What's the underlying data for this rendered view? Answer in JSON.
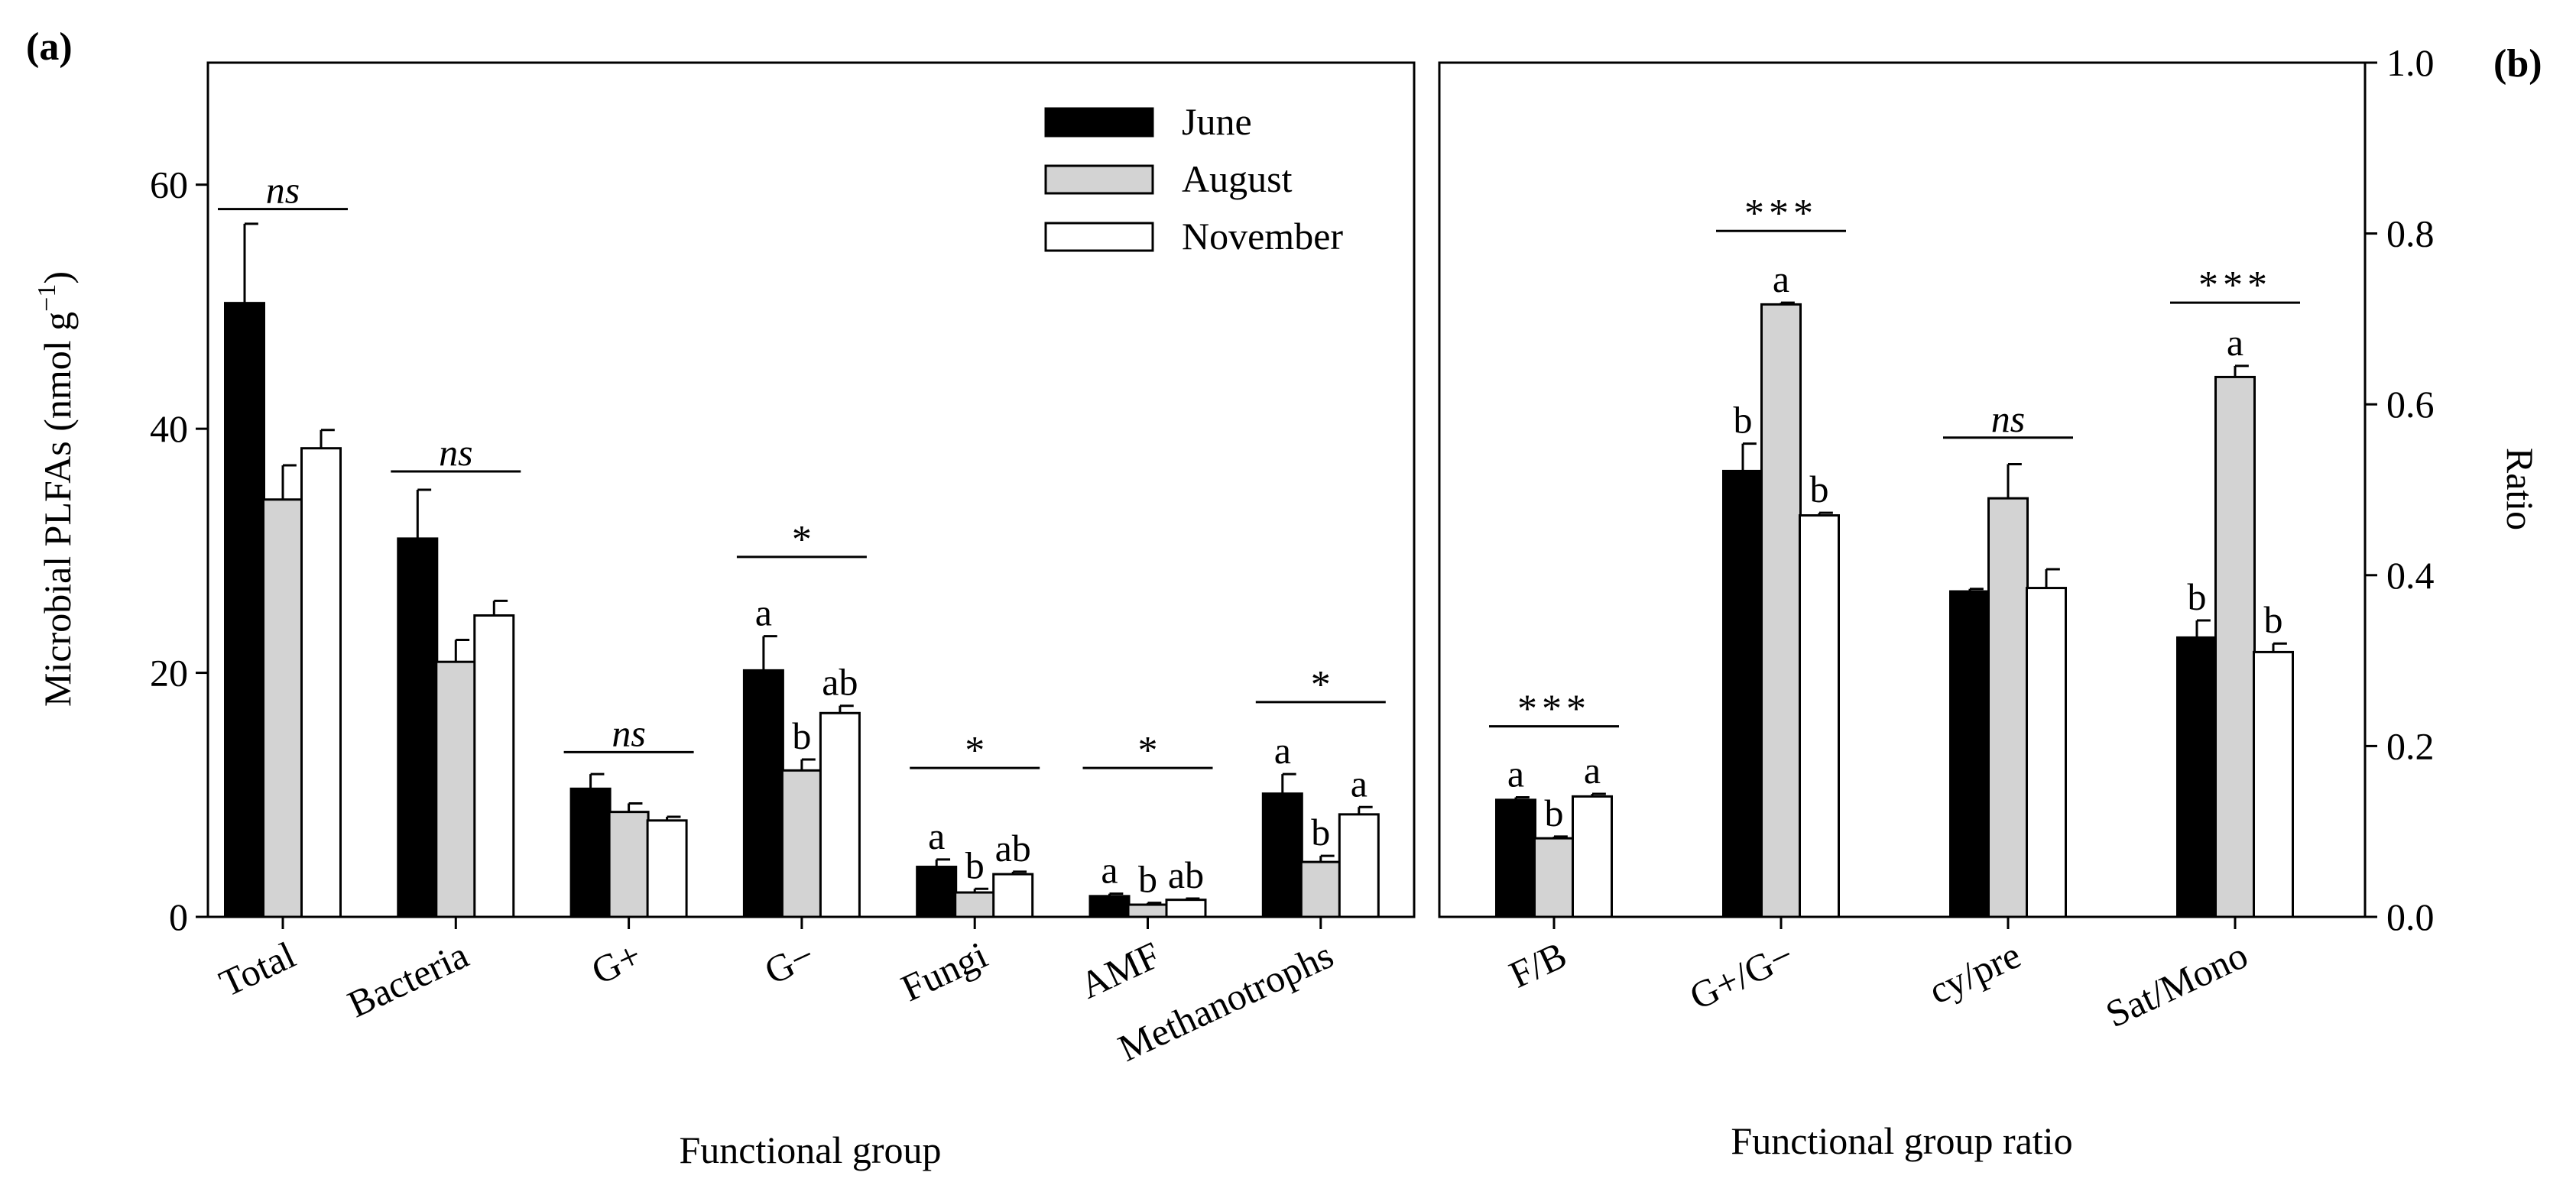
{
  "chart_data": [
    {
      "panel": "(a)",
      "type": "bar",
      "xlabel": "Functional group",
      "ylabel": "Microbial PLFAs (nmol g",
      "ylabel_sup": "−1",
      "ylabel_close": ")",
      "ylim": [
        0,
        70
      ],
      "yticks": [
        0,
        20,
        40,
        60
      ],
      "categories": [
        "Total",
        "Bacteria",
        "G+",
        "G−",
        "Fungi",
        "AMF",
        "Methanotrophs"
      ],
      "series": [
        {
          "name": "June",
          "color": "#000000",
          "values": [
            50.3,
            31.0,
            10.5,
            20.2,
            4.1,
            1.7,
            10.1
          ],
          "errors": [
            6.5,
            4.0,
            1.2,
            2.8,
            0.6,
            0.2,
            1.6
          ]
        },
        {
          "name": "August",
          "color": "#d3d3d3",
          "values": [
            34.2,
            20.9,
            8.6,
            12.0,
            2.0,
            1.0,
            4.5
          ],
          "errors": [
            2.8,
            1.8,
            0.7,
            0.9,
            0.3,
            0.15,
            0.5
          ]
        },
        {
          "name": "November",
          "color": "#ffffff",
          "values": [
            38.4,
            24.7,
            7.9,
            16.7,
            3.5,
            1.4,
            8.4
          ],
          "errors": [
            1.5,
            1.2,
            0.3,
            0.6,
            0.2,
            0.1,
            0.6
          ]
        }
      ],
      "significance": [
        "ns",
        "ns",
        "ns",
        "*",
        "*",
        "*",
        "*"
      ],
      "significance_italic": [
        true,
        true,
        true,
        false,
        false,
        false,
        false
      ],
      "sig_line_y": [
        58,
        36.5,
        13.5,
        29.5,
        12.2,
        12.2,
        17.6
      ],
      "letters": [
        [
          "",
          "",
          ""
        ],
        [
          "",
          "",
          ""
        ],
        [
          "",
          "",
          ""
        ],
        [
          "a",
          "b",
          "ab"
        ],
        [
          "a",
          "b",
          "ab"
        ],
        [
          "a",
          "b",
          "ab"
        ],
        [
          "a",
          "b",
          "a"
        ]
      ],
      "legend": [
        "June",
        "August",
        "November"
      ]
    },
    {
      "panel": "(b)",
      "type": "bar",
      "xlabel": "Functional group ratio",
      "ylabel": "Ratio",
      "ylim": [
        0,
        1.0
      ],
      "yticks": [
        0.0,
        0.2,
        0.4,
        0.6,
        0.8,
        1.0
      ],
      "categories": [
        "F/B",
        "G+/G−",
        "cy/pre",
        "Sat/Mono"
      ],
      "series": [
        {
          "name": "June",
          "color": "#000000",
          "values": [
            0.137,
            0.522,
            0.381,
            0.327
          ],
          "errors": [
            0.003,
            0.032,
            0.003,
            0.02
          ]
        },
        {
          "name": "August",
          "color": "#d3d3d3",
          "values": [
            0.092,
            0.717,
            0.49,
            0.632
          ],
          "errors": [
            0.002,
            0.002,
            0.04,
            0.013
          ]
        },
        {
          "name": "November",
          "color": "#ffffff",
          "values": [
            0.141,
            0.47,
            0.385,
            0.31
          ],
          "errors": [
            0.003,
            0.003,
            0.022,
            0.01
          ]
        }
      ],
      "significance": [
        "***",
        "***",
        "ns",
        "***"
      ],
      "significance_italic": [
        false,
        false,
        true,
        false
      ],
      "sig_line_y": [
        0.223,
        0.803,
        0.561,
        0.719
      ],
      "letters": [
        [
          "a",
          "b",
          "a"
        ],
        [
          "b",
          "a",
          "b"
        ],
        [
          "",
          "",
          ""
        ],
        [
          "b",
          "a",
          "b"
        ]
      ]
    }
  ]
}
